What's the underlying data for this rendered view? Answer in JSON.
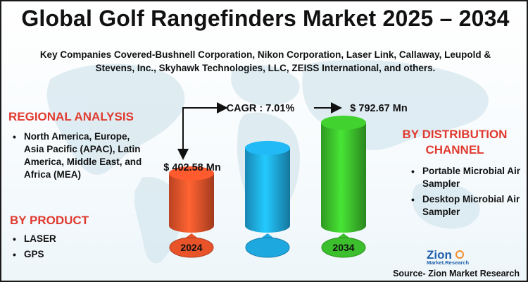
{
  "title": "Global Golf Rangefinders Market 2025 – 2034",
  "subtitle": "Key Companies Covered-Bushnell Corporation, Nikon Corporation, Laser Link, Callaway, Leupold & Stevens, Inc., Skyhawk Technologies, LLC, ZEISS International, and others.",
  "regional": {
    "heading": "REGIONAL ANALYSIS",
    "items": [
      "North America, Europe, Asia Pacific (APAC), Latin America, Middle East, and Africa (MEA)"
    ]
  },
  "product": {
    "heading": "BY PRODUCT",
    "items": [
      "LASER",
      "GPS"
    ]
  },
  "distribution": {
    "heading": "BY DISTRIBUTION CHANNEL",
    "items": [
      "Portable Microbial Air Sampler",
      "Desktop Microbial Air Sampler"
    ]
  },
  "chart_data": {
    "type": "bar",
    "categories": [
      "2024",
      "",
      "2034"
    ],
    "values": [
      402.58,
      597.64,
      792.67
    ],
    "value_labels": [
      "$ 402.58 Mn",
      "",
      "$ 792.67 Mn"
    ],
    "cagr_label": "CAGR : 7.01%",
    "bar_colors": [
      "#e8532a",
      "#1ea8e0",
      "#3cbf2c"
    ],
    "bar_style": "3d-cylinder"
  },
  "logo": {
    "word": "Zion",
    "tagline": "Market.Research"
  },
  "source": "Source- Zion Market Research"
}
